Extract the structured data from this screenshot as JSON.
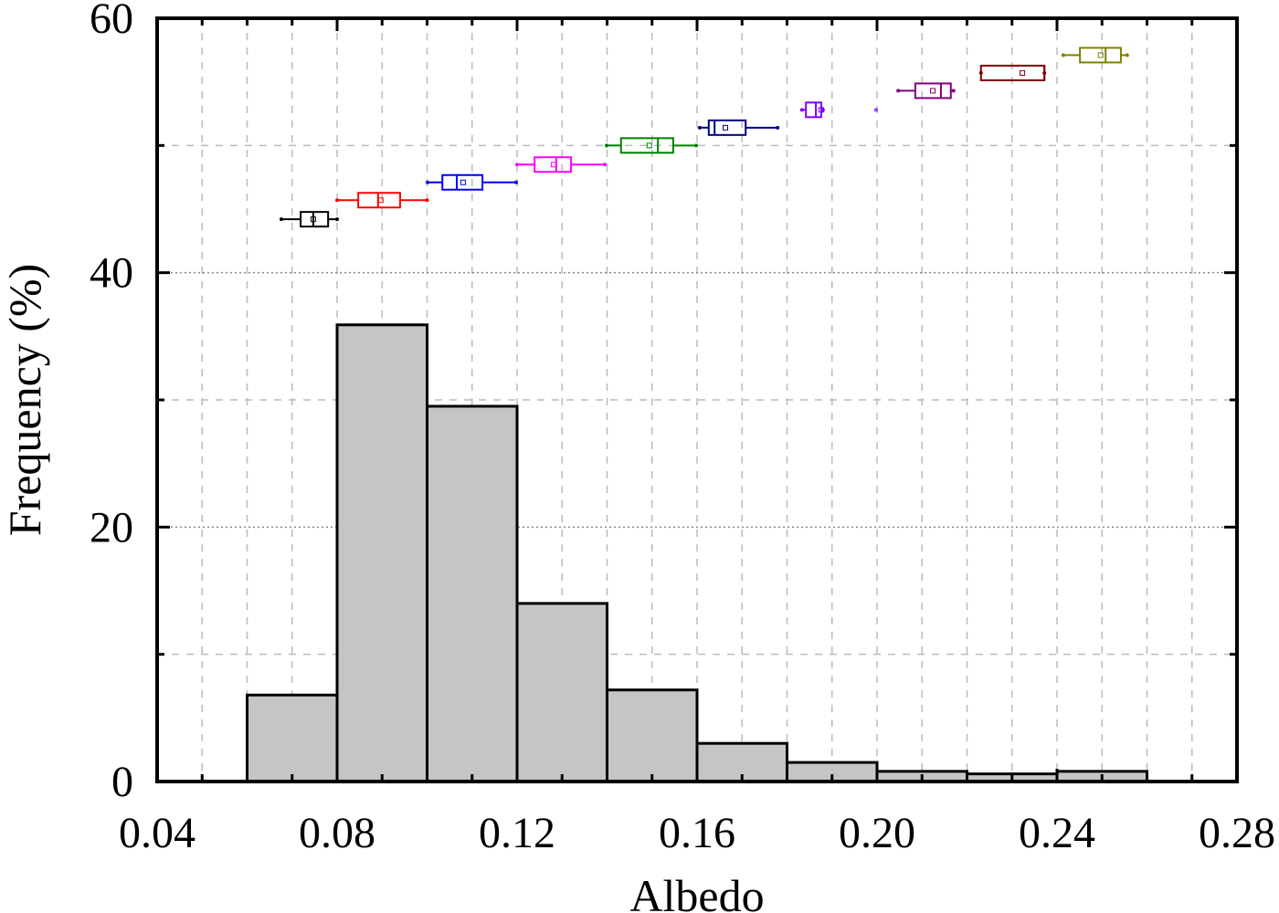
{
  "chart_data": {
    "type": "bar",
    "subtype": "histogram with box plots",
    "title": "",
    "xlabel": "Albedo",
    "ylabel": "Frequency (%)",
    "xlim": [
      0.04,
      0.28
    ],
    "ylim": [
      0,
      60
    ],
    "xticks": [
      "0.04",
      "0.08",
      "0.12",
      "0.16",
      "0.20",
      "0.24",
      "0.28"
    ],
    "yticks": [
      "0",
      "20",
      "40",
      "60"
    ],
    "grid": true,
    "histogram": {
      "bin_edges": [
        0.06,
        0.08,
        0.1,
        0.12,
        0.14,
        0.16,
        0.18,
        0.2,
        0.22,
        0.24,
        0.26
      ],
      "values": [
        6.8,
        35.9,
        29.5,
        14.0,
        7.2,
        3.0,
        1.5,
        0.8,
        0.6,
        0.8
      ],
      "color": "#c5c5c5"
    },
    "boxplots": [
      {
        "y": 44.2,
        "min": 0.0676,
        "q1": 0.0719,
        "median": 0.0747,
        "mean": 0.0747,
        "q3": 0.078,
        "max": 0.08,
        "color": "#000000"
      },
      {
        "y": 45.7,
        "min": 0.08,
        "q1": 0.0847,
        "median": 0.0891,
        "mean": 0.0897,
        "q3": 0.094,
        "max": 0.1,
        "color": "#ff0000"
      },
      {
        "y": 47.1,
        "min": 0.1001,
        "q1": 0.1034,
        "median": 0.1066,
        "mean": 0.108,
        "q3": 0.1123,
        "max": 0.1198,
        "color": "#0000ff"
      },
      {
        "y": 48.5,
        "min": 0.12,
        "q1": 0.1239,
        "median": 0.1287,
        "mean": 0.1281,
        "q3": 0.132,
        "max": 0.1395,
        "color": "#ff00ff"
      },
      {
        "y": 50.0,
        "min": 0.1399,
        "q1": 0.1431,
        "median": 0.1513,
        "mean": 0.1494,
        "q3": 0.1547,
        "max": 0.1598,
        "color": "#008000"
      },
      {
        "y": 51.4,
        "min": 0.1606,
        "q1": 0.1626,
        "median": 0.1639,
        "mean": 0.1663,
        "q3": 0.1708,
        "max": 0.1779,
        "color": "#000080"
      },
      {
        "y": 52.8,
        "min": 0.1833,
        "q1": 0.1842,
        "median": 0.1864,
        "mean": 0.1876,
        "q3": 0.1876,
        "max": 0.188,
        "color": "#8000ff"
      },
      {
        "y": 52.8,
        "min": 0.1998,
        "q1": 0.1998,
        "median": 0.1998,
        "mean": 0.1998,
        "q3": 0.1998,
        "max": 0.1998,
        "color": "#a040ff"
      },
      {
        "y": 54.3,
        "min": 0.2047,
        "q1": 0.2085,
        "median": 0.2142,
        "mean": 0.2124,
        "q3": 0.2164,
        "max": 0.217,
        "color": "#800080"
      },
      {
        "y": 55.7,
        "min": 0.2231,
        "q1": 0.2231,
        "median": 0.2372,
        "mean": 0.2323,
        "q3": 0.2372,
        "max": 0.2372,
        "color": "#800000"
      },
      {
        "y": 57.1,
        "min": 0.2414,
        "q1": 0.2451,
        "median": 0.2508,
        "mean": 0.2497,
        "q3": 0.2542,
        "max": 0.2556,
        "color": "#808000"
      }
    ]
  }
}
